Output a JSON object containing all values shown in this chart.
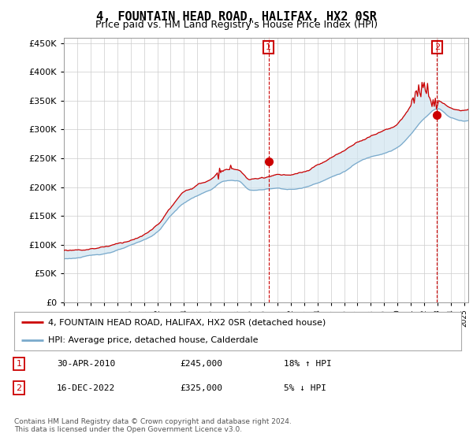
{
  "title": "4, FOUNTAIN HEAD ROAD, HALIFAX, HX2 0SR",
  "subtitle": "Price paid vs. HM Land Registry's House Price Index (HPI)",
  "ylim": [
    0,
    460000
  ],
  "yticks": [
    0,
    50000,
    100000,
    150000,
    200000,
    250000,
    300000,
    350000,
    400000,
    450000
  ],
  "red_color": "#cc0000",
  "blue_color": "#7aaacc",
  "fill_color": "#d0e4f0",
  "marker1_x": 2010.33,
  "marker1_y": 245000,
  "marker2_x": 2022.96,
  "marker2_y": 325000,
  "legend_red_label": "4, FOUNTAIN HEAD ROAD, HALIFAX, HX2 0SR (detached house)",
  "legend_blue_label": "HPI: Average price, detached house, Calderdale",
  "table_row1": [
    "1",
    "30-APR-2010",
    "£245,000",
    "18% ↑ HPI"
  ],
  "table_row2": [
    "2",
    "16-DEC-2022",
    "£325,000",
    "5% ↓ HPI"
  ],
  "footnote": "Contains HM Land Registry data © Crown copyright and database right 2024.\nThis data is licensed under the Open Government Licence v3.0.",
  "title_fontsize": 11,
  "subtitle_fontsize": 9,
  "background_color": "#ffffff",
  "grid_color": "#cccccc",
  "xlim_left": 1995.0,
  "xlim_right": 2025.3
}
